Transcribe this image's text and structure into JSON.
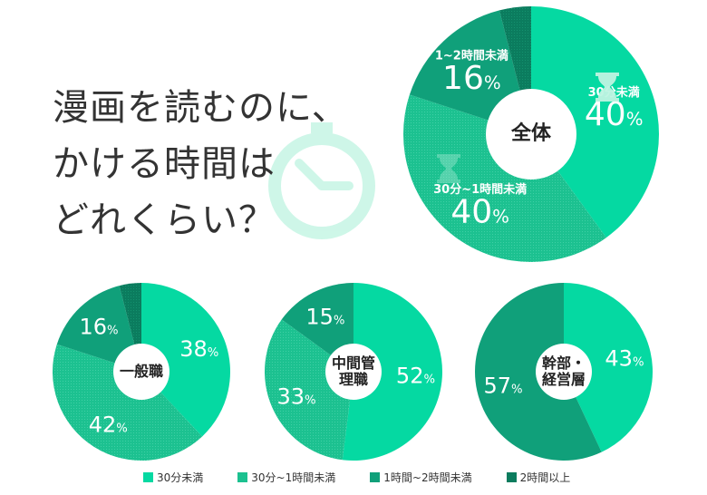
{
  "title_lines": [
    "漫画を読むのに、",
    "かける時間は",
    "どれくらい？"
  ],
  "colors": {
    "under30": "#05d9a2",
    "30to60": "#1cc190",
    "60to120": "#10a07a",
    "over120": "#0b7c5e"
  },
  "icons": [
    "stopwatch-icon",
    "hourglass-icon"
  ],
  "chart_data": [
    {
      "type": "pie",
      "title": "全体",
      "categories": [
        "30分未満",
        "30分~1時間未満",
        "1~2時間未満",
        "2時間以上"
      ],
      "values": [
        40,
        40,
        16,
        4
      ],
      "labels": [
        "40%",
        "40%",
        "16%",
        ""
      ],
      "category_labels": [
        "30分未満",
        "30分~1時間未満",
        "1~2時間未満",
        ""
      ]
    },
    {
      "type": "pie",
      "title": "一般職",
      "categories": [
        "30分未満",
        "30分~1時間未満",
        "1時間~2時間未満",
        "2時間以上"
      ],
      "values": [
        38,
        42,
        16,
        4
      ],
      "labels": [
        "38%",
        "42%",
        "16%",
        ""
      ]
    },
    {
      "type": "pie",
      "title": "中間管理職",
      "title_lines": [
        "中間",
        "管理職"
      ],
      "categories": [
        "30分未満",
        "30分~1時間未満",
        "1時間~2時間未満",
        "2時間以上"
      ],
      "values": [
        52,
        33,
        15,
        0
      ],
      "labels": [
        "52%",
        "33%",
        "15%",
        ""
      ]
    },
    {
      "type": "pie",
      "title": "幹部・経営層",
      "title_lines": [
        "幹部・",
        "経営層"
      ],
      "categories": [
        "30分未満",
        "30分~1時間未満",
        "1時間~2時間未満",
        "2時間以上"
      ],
      "values": [
        43,
        0,
        57,
        0
      ],
      "labels": [
        "43%",
        "",
        "57%",
        ""
      ]
    }
  ],
  "legend": [
    "30分未満",
    "30分~1時間未満",
    "1時間~2時間未満",
    "2時間以上"
  ]
}
